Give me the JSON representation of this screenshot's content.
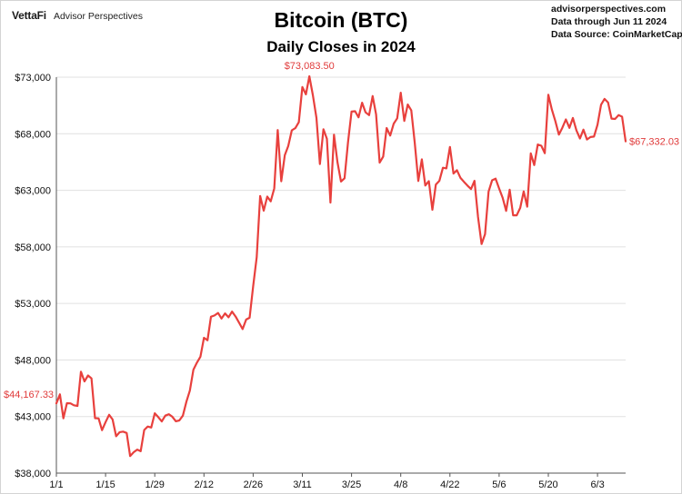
{
  "header": {
    "logo_brand": "VettaFi",
    "logo_sub": "Advisor Perspectives",
    "title": "Bitcoin (BTC)",
    "subtitle": "Daily Closes in 2024",
    "source_lines": [
      "advisorperspectives.com",
      "Data through Jun 11 2024",
      "Data Source: CoinMarketCap"
    ]
  },
  "colors": {
    "line": "#e8403d",
    "grid": "#e0e0e0",
    "axis": "#555555"
  },
  "chart_data": {
    "type": "line",
    "title": "Bitcoin (BTC)",
    "subtitle": "Daily Closes in 2024",
    "xlabel": "",
    "ylabel": "",
    "ylim": [
      38000,
      73000
    ],
    "yticks": [
      "$38,000",
      "$43,000",
      "$48,000",
      "$53,000",
      "$58,000",
      "$63,000",
      "$68,000",
      "$73,000"
    ],
    "ytick_values": [
      38000,
      43000,
      48000,
      53000,
      58000,
      63000,
      68000,
      73000
    ],
    "xticks": [
      "1/1",
      "1/15",
      "1/29",
      "2/12",
      "2/26",
      "3/11",
      "3/25",
      "4/8",
      "4/22",
      "5/6",
      "5/20",
      "6/3"
    ],
    "xtick_day_index": [
      0,
      14,
      28,
      42,
      56,
      70,
      84,
      98,
      112,
      126,
      140,
      154
    ],
    "x_range": [
      "1/1",
      "6/11"
    ],
    "grid": "horizontal",
    "series": [
      {
        "values": [
          44167.33,
          44957,
          42848,
          44179,
          44162,
          43998,
          43943,
          46970,
          46105,
          46632,
          46370,
          42853,
          42842,
          41796,
          42511,
          43154,
          42742,
          41262,
          41618,
          41665,
          41545,
          39507,
          39845,
          40077,
          39934,
          41816,
          42120,
          42031,
          43288,
          42946,
          42569,
          43082,
          43200,
          42986,
          42584,
          42659,
          43085,
          44318,
          45301,
          47147,
          47771,
          48293,
          49958,
          49742,
          51826,
          51938,
          52160,
          51663,
          52122,
          51779,
          52284,
          51839,
          51304,
          50731,
          51571,
          51733,
          54522,
          57085,
          62504,
          61198,
          62440,
          62029,
          63168,
          68330,
          63801,
          66106,
          66926,
          68300,
          68498,
          69020,
          72123,
          71482,
          73083.5,
          71396,
          69403,
          65316,
          68390,
          67548,
          61912,
          67913,
          65491,
          63779,
          64062,
          67234,
          69958,
          69987,
          69455,
          70744,
          69892,
          69646,
          71333,
          69702,
          65446,
          65980,
          68508,
          67838,
          68896,
          69362,
          71631,
          69139,
          70587,
          70060,
          67195,
          63821,
          65739,
          63427,
          63811,
          61276,
          63512,
          63844,
          64994,
          64941,
          66837,
          64481,
          64777,
          64094,
          63755,
          63419,
          63113,
          63842,
          60636,
          58254,
          59123,
          62890,
          63892,
          64032,
          63161,
          62334,
          61187,
          63050,
          60793,
          60794,
          61448,
          62901,
          61552,
          66267,
          65231,
          67051,
          66940,
          66278,
          71448,
          70136,
          69123,
          67929,
          68526,
          69265,
          68518,
          69394,
          68296,
          67578,
          68364,
          67495,
          67706,
          67751,
          68804,
          70567,
          71082,
          70757,
          69342,
          69305,
          69647,
          69512,
          67332.03
        ]
      }
    ],
    "annotations": [
      {
        "text": "$73,083.50",
        "label": "peak"
      },
      {
        "text": "$44,167.33",
        "label": "first"
      },
      {
        "text": "$67,332.03",
        "label": "last"
      }
    ]
  }
}
